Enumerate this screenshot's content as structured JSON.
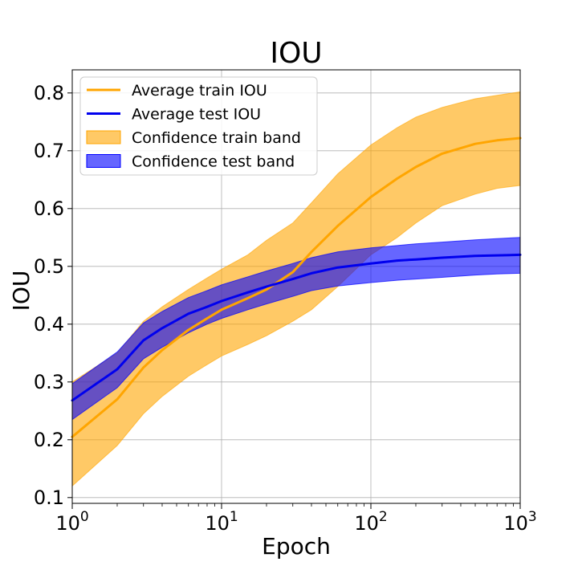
{
  "chart_data": {
    "type": "line",
    "title": "IOU",
    "xlabel": "Epoch",
    "ylabel": "IOU",
    "xscale": "log",
    "xlim": [
      1,
      1000
    ],
    "ylim": [
      0.09,
      0.84
    ],
    "grid": true,
    "legend_position": "top-left",
    "x_ticks": [
      {
        "base": "10",
        "exp": "0"
      },
      {
        "base": "10",
        "exp": "1"
      },
      {
        "base": "10",
        "exp": "2"
      },
      {
        "base": "10",
        "exp": "3"
      }
    ],
    "y_ticks": [
      0.1,
      0.2,
      0.3,
      0.4,
      0.5,
      0.6,
      0.7,
      0.8
    ],
    "x": [
      1,
      2,
      3,
      4,
      6,
      8,
      10,
      15,
      20,
      30,
      40,
      60,
      100,
      150,
      200,
      300,
      500,
      700,
      1000
    ],
    "series": [
      {
        "name": "Average train IOU",
        "kind": "line",
        "color": "#ffa500",
        "values": [
          0.205,
          0.27,
          0.325,
          0.355,
          0.39,
          0.41,
          0.425,
          0.445,
          0.46,
          0.49,
          0.525,
          0.57,
          0.62,
          0.652,
          0.672,
          0.695,
          0.712,
          0.718,
          0.722
        ]
      },
      {
        "name": "Average test IOU",
        "kind": "line",
        "color": "#0000ee",
        "values": [
          0.268,
          0.322,
          0.372,
          0.393,
          0.418,
          0.43,
          0.44,
          0.455,
          0.465,
          0.478,
          0.488,
          0.498,
          0.505,
          0.51,
          0.512,
          0.515,
          0.518,
          0.519,
          0.52
        ]
      },
      {
        "name": "Confidence train band",
        "kind": "band",
        "color": "#ffa500",
        "lower": [
          0.12,
          0.19,
          0.245,
          0.275,
          0.31,
          0.33,
          0.345,
          0.365,
          0.38,
          0.405,
          0.425,
          0.465,
          0.52,
          0.55,
          0.575,
          0.605,
          0.625,
          0.635,
          0.64
        ],
        "upper": [
          0.3,
          0.35,
          0.405,
          0.43,
          0.46,
          0.48,
          0.495,
          0.52,
          0.545,
          0.575,
          0.61,
          0.66,
          0.71,
          0.74,
          0.758,
          0.775,
          0.79,
          0.796,
          0.802
        ]
      },
      {
        "name": "Confidence test band",
        "kind": "band",
        "color": "#0000ff",
        "lower": [
          0.235,
          0.29,
          0.34,
          0.36,
          0.385,
          0.4,
          0.41,
          0.425,
          0.435,
          0.448,
          0.458,
          0.466,
          0.472,
          0.476,
          0.478,
          0.481,
          0.485,
          0.487,
          0.488
        ],
        "upper": [
          0.297,
          0.352,
          0.402,
          0.422,
          0.446,
          0.458,
          0.468,
          0.482,
          0.492,
          0.505,
          0.515,
          0.525,
          0.532,
          0.536,
          0.539,
          0.542,
          0.546,
          0.548,
          0.55
        ]
      }
    ]
  }
}
